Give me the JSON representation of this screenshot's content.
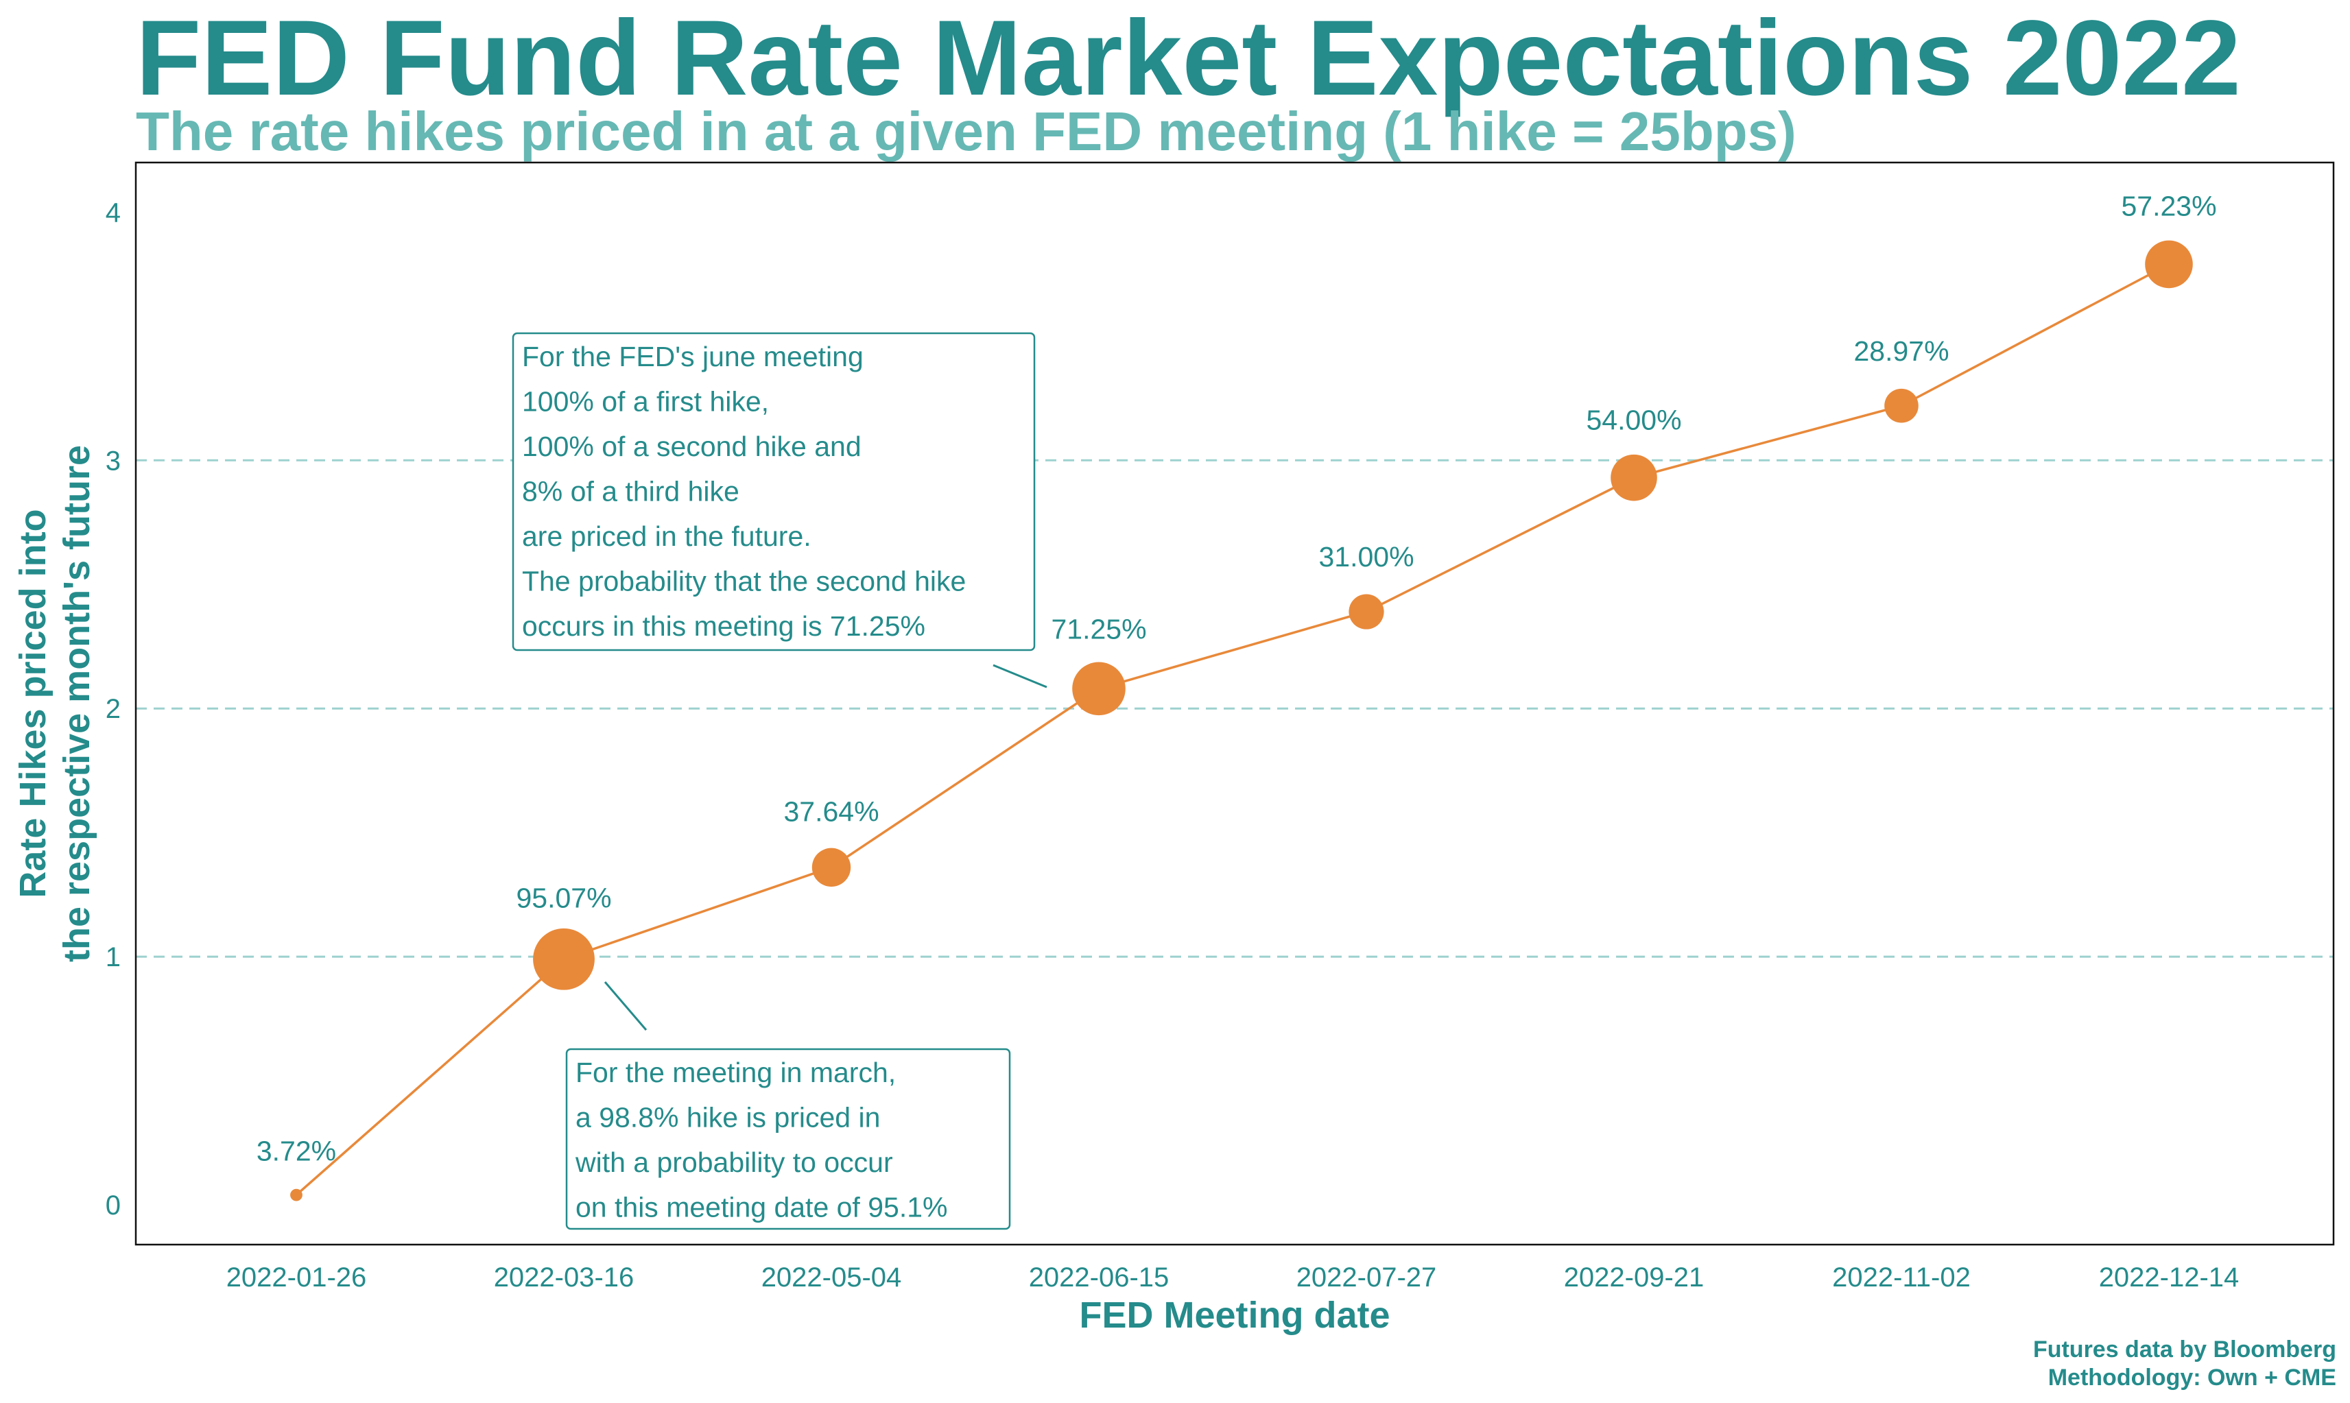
{
  "title": "FED Fund Rate Market Expectations 2022",
  "subtitle": "The rate hikes priced in at a given FED meeting (1 hike = 25bps)",
  "credit": [
    "Futures data by Bloomberg",
    "Methodology: Own + CME"
  ],
  "colors": {
    "line": "#e8893a",
    "marker": "#e8893a",
    "text": "#258b8b",
    "grid": "#9dd1cf"
  },
  "chart_data": {
    "type": "line",
    "xlabel": "FED Meeting date",
    "ylabel": [
      "Rate Hikes priced into",
      "the respective month's future"
    ],
    "ylim": [
      -0.16,
      4.2
    ],
    "yticks": [
      0,
      1,
      2,
      3,
      4
    ],
    "grid": "horizontal dashed at 1, 2, 3",
    "categories": [
      "2022-01-26",
      "2022-03-16",
      "2022-05-04",
      "2022-06-15",
      "2022-07-27",
      "2022-09-21",
      "2022-11-02",
      "2022-12-14"
    ],
    "values": [
      0.04,
      0.99,
      1.36,
      2.08,
      2.39,
      2.93,
      3.22,
      3.79
    ],
    "labels": [
      "3.72%",
      "95.07%",
      "37.64%",
      "71.25%",
      "31.00%",
      "54.00%",
      "28.97%",
      "57.23%"
    ],
    "probabilities": [
      3.72,
      95.07,
      37.64,
      71.25,
      31.0,
      54.0,
      28.97,
      57.23
    ],
    "annotations": [
      {
        "target": "2022-06-15",
        "lines": [
          "For the FED's june meeting",
          "100% of a first hike,",
          "100% of a second hike and",
          "8% of a third hike",
          "are priced in the future.",
          "The probability that the second hike",
          "occurs in this meeting is 71.25%"
        ]
      },
      {
        "target": "2022-03-16",
        "lines": [
          "For the meeting in march,",
          "a 98.8% hike is priced in",
          "with a probability to occur",
          "on this meeting date of 95.1%"
        ]
      }
    ]
  }
}
